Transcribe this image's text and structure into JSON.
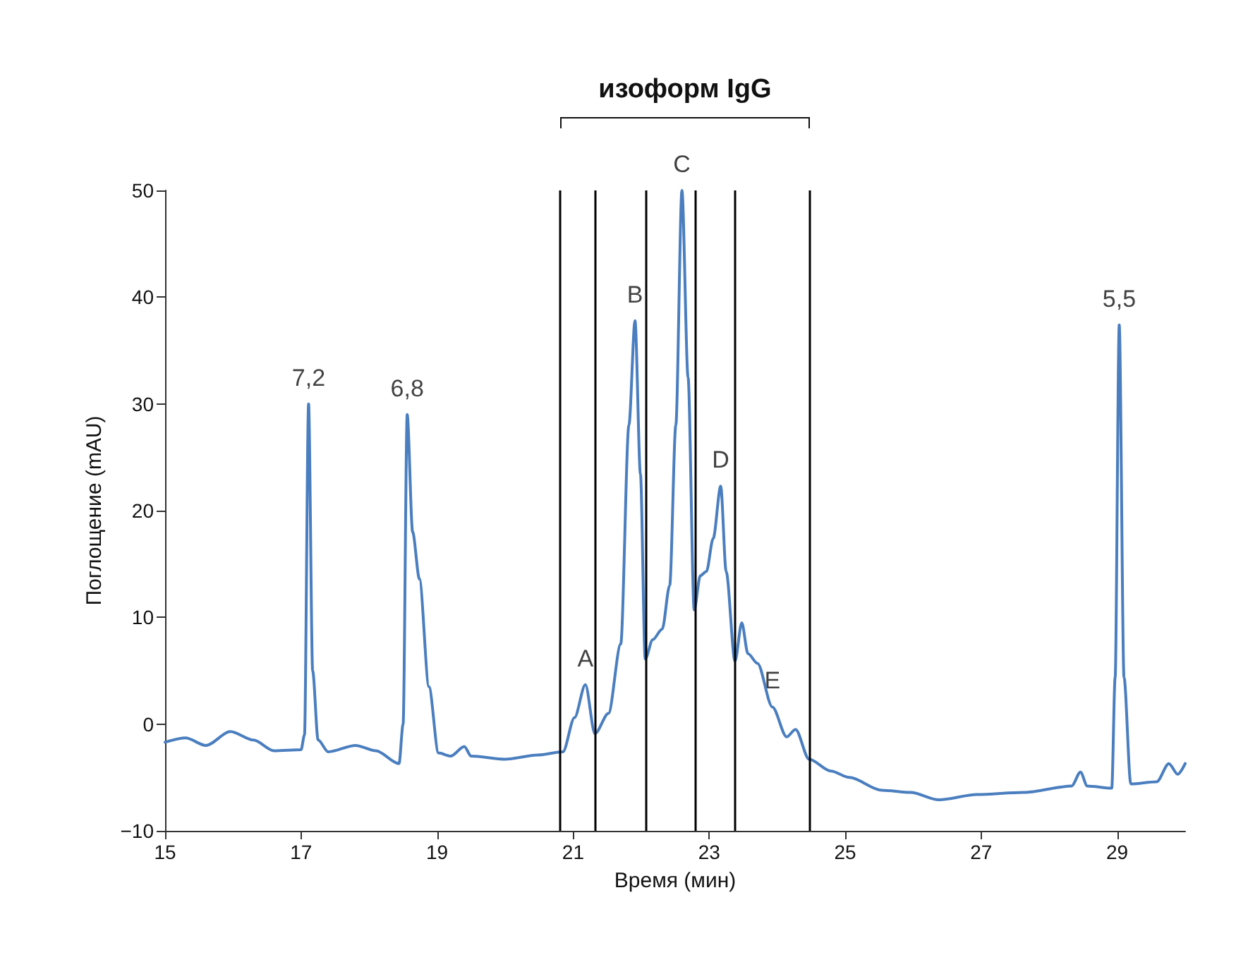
{
  "chart_data": {
    "type": "line",
    "xlabel": "Время (мин)",
    "ylabel": "Поглощение (mAU)",
    "x": [
      15.0,
      15.3,
      15.6,
      15.96,
      16.3,
      16.6,
      17.0,
      17.05,
      17.11,
      17.17,
      17.25,
      17.4,
      17.8,
      18.1,
      18.44,
      18.5,
      18.56,
      18.64,
      18.74,
      18.88,
      19.02,
      19.2,
      19.4,
      19.5,
      20.0,
      20.48,
      20.85,
      21.02,
      21.18,
      21.32,
      21.52,
      21.7,
      21.82,
      21.91,
      21.99,
      22.06,
      22.17,
      22.31,
      22.42,
      22.51,
      22.6,
      22.69,
      22.78,
      22.87,
      22.96,
      23.06,
      23.17,
      23.25,
      23.38,
      23.48,
      23.57,
      23.71,
      23.93,
      24.14,
      24.27,
      24.47,
      24.79,
      25.06,
      25.54,
      25.96,
      26.38,
      26.94,
      27.63,
      28.33,
      28.46,
      28.56,
      28.92,
      28.97,
      29.03,
      29.1,
      29.2,
      29.58,
      29.76,
      29.89,
      30.0
    ],
    "series": [
      {
        "color": "#4a7ebf",
        "values": [
          -1.7,
          -1.3,
          -2.0,
          -0.7,
          -1.5,
          -2.5,
          -2.4,
          -1.0,
          30,
          5,
          -1.5,
          -2.6,
          -2.0,
          -2.5,
          -3.7,
          0,
          29,
          18,
          13.6,
          3.5,
          -2.7,
          -3.0,
          -2.1,
          -3.0,
          -3.3,
          -2.9,
          -2.6,
          0.6,
          3.7,
          -0.9,
          1.0,
          7.5,
          28,
          37.8,
          23.4,
          6.1,
          7.9,
          8.9,
          13,
          28,
          50,
          32.5,
          10.7,
          13.9,
          14.3,
          17.4,
          22.3,
          14.3,
          5.9,
          9.5,
          6.6,
          5.7,
          1.6,
          -1.2,
          -0.5,
          -3.3,
          -4.4,
          -5.0,
          -6.2,
          -6.4,
          -7.1,
          -6.6,
          -6.4,
          -5.8,
          -4.5,
          -5.8,
          -6.0,
          4.4,
          37.4,
          4.4,
          -5.6,
          -5.4,
          -3.7,
          -4.7,
          -3.7
        ]
      }
    ],
    "xlim": [
      15,
      30
    ],
    "xticks": [
      15,
      17,
      19,
      21,
      23,
      25,
      27,
      29
    ],
    "ylim": [
      -10,
      50
    ],
    "yticks": [
      {
        "value": -10,
        "label": "−10"
      },
      0,
      10,
      20,
      30,
      40,
      50
    ],
    "grid": false,
    "marker": "none",
    "line_style": "solid",
    "ref_lines": [
      {
        "axis": "x",
        "value": 20.81,
        "color": "#000000"
      },
      {
        "axis": "x",
        "value": 21.33,
        "color": "#000000"
      },
      {
        "axis": "x",
        "value": 22.06,
        "color": "#000000"
      },
      {
        "axis": "x",
        "value": 22.79,
        "color": "#000000"
      },
      {
        "axis": "x",
        "value": 23.38,
        "color": "#000000"
      },
      {
        "axis": "x",
        "value": 24.48,
        "color": "#000000"
      }
    ],
    "annotations": [
      "изоформ IgG",
      {
        "text": "7,2",
        "x": 17.11,
        "y": 30
      },
      {
        "text": "6,8",
        "x": 18.56,
        "y": 29
      },
      {
        "text": "A",
        "x": 21.18,
        "y": 3.7
      },
      {
        "text": "B",
        "x": 21.91,
        "y": 37.8
      },
      {
        "text": "C",
        "x": 22.6,
        "y": 50
      },
      {
        "text": "D",
        "x": 23.17,
        "y": 22.3
      },
      {
        "text": "E",
        "x": 23.93,
        "y": 1.6
      },
      {
        "text": "5,5",
        "x": 29.03,
        "y": 37.4
      }
    ]
  }
}
